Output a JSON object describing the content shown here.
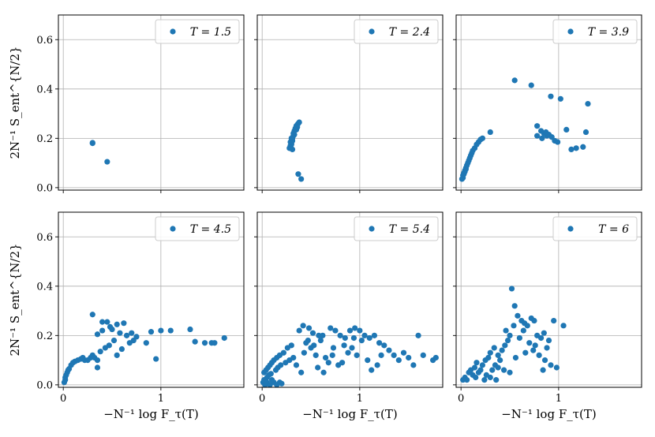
{
  "chart_data": {
    "type": "scatter",
    "rows": 2,
    "cols": 3,
    "sharex": true,
    "sharey": true,
    "xlim": [
      -0.05,
      1.85
    ],
    "ylim": [
      -0.01,
      0.7
    ],
    "xticks": [
      0,
      1
    ],
    "xtick_labels": [
      "0",
      "1"
    ],
    "yticks": [
      0.0,
      0.2,
      0.4,
      0.6
    ],
    "ytick_labels": [
      "0.0",
      "0.2",
      "0.4",
      "0.6"
    ],
    "xlabel": "−N⁻¹ log F_τ(T)",
    "ylabel": "2N⁻¹ S_ent^{N/2}",
    "grid": true,
    "legend_placement": "upper right",
    "marker_color": "#1f77b4",
    "panels": [
      {
        "legend": "T = 1.5",
        "points": [
          [
            0.3,
            0.18
          ],
          [
            0.3,
            0.182
          ],
          [
            0.45,
            0.105
          ]
        ]
      },
      {
        "legend": "T = 2.4",
        "points": [
          [
            0.28,
            0.16
          ],
          [
            0.29,
            0.17
          ],
          [
            0.3,
            0.175
          ],
          [
            0.3,
            0.18
          ],
          [
            0.31,
            0.19
          ],
          [
            0.31,
            0.2
          ],
          [
            0.32,
            0.21
          ],
          [
            0.32,
            0.22
          ],
          [
            0.33,
            0.23
          ],
          [
            0.34,
            0.24
          ],
          [
            0.35,
            0.25
          ],
          [
            0.36,
            0.255
          ],
          [
            0.37,
            0.26
          ],
          [
            0.38,
            0.265
          ],
          [
            0.29,
            0.185
          ],
          [
            0.3,
            0.2
          ],
          [
            0.31,
            0.155
          ],
          [
            0.33,
            0.215
          ],
          [
            0.35,
            0.235
          ],
          [
            0.36,
            0.245
          ],
          [
            0.37,
            0.055
          ],
          [
            0.4,
            0.035
          ]
        ]
      },
      {
        "legend": "T = 3.9",
        "points": [
          [
            0.01,
            0.035
          ],
          [
            0.02,
            0.04
          ],
          [
            0.02,
            0.05
          ],
          [
            0.03,
            0.055
          ],
          [
            0.03,
            0.06
          ],
          [
            0.04,
            0.065
          ],
          [
            0.04,
            0.07
          ],
          [
            0.05,
            0.075
          ],
          [
            0.05,
            0.08
          ],
          [
            0.06,
            0.09
          ],
          [
            0.07,
            0.1
          ],
          [
            0.08,
            0.11
          ],
          [
            0.09,
            0.12
          ],
          [
            0.1,
            0.13
          ],
          [
            0.11,
            0.14
          ],
          [
            0.12,
            0.15
          ],
          [
            0.14,
            0.16
          ],
          [
            0.16,
            0.175
          ],
          [
            0.18,
            0.185
          ],
          [
            0.2,
            0.195
          ],
          [
            0.22,
            0.2
          ],
          [
            0.3,
            0.225
          ],
          [
            0.55,
            0.435
          ],
          [
            0.72,
            0.415
          ],
          [
            0.92,
            0.37
          ],
          [
            1.02,
            0.36
          ],
          [
            1.3,
            0.34
          ],
          [
            0.78,
            0.25
          ],
          [
            0.82,
            0.23
          ],
          [
            0.85,
            0.22
          ],
          [
            0.88,
            0.21
          ],
          [
            0.9,
            0.215
          ],
          [
            0.93,
            0.205
          ],
          [
            0.96,
            0.19
          ],
          [
            0.99,
            0.185
          ],
          [
            0.78,
            0.21
          ],
          [
            0.83,
            0.2
          ],
          [
            0.87,
            0.225
          ],
          [
            1.08,
            0.235
          ],
          [
            1.18,
            0.16
          ],
          [
            1.13,
            0.155
          ],
          [
            1.25,
            0.165
          ],
          [
            1.28,
            0.225
          ]
        ]
      },
      {
        "legend": "T = 4.5",
        "points": [
          [
            0.01,
            0.01
          ],
          [
            0.02,
            0.02
          ],
          [
            0.02,
            0.03
          ],
          [
            0.03,
            0.04
          ],
          [
            0.04,
            0.05
          ],
          [
            0.05,
            0.06
          ],
          [
            0.06,
            0.065
          ],
          [
            0.08,
            0.08
          ],
          [
            0.1,
            0.09
          ],
          [
            0.12,
            0.095
          ],
          [
            0.15,
            0.1
          ],
          [
            0.18,
            0.105
          ],
          [
            0.2,
            0.11
          ],
          [
            0.22,
            0.1
          ],
          [
            0.25,
            0.1
          ],
          [
            0.28,
            0.11
          ],
          [
            0.3,
            0.12
          ],
          [
            0.32,
            0.11
          ],
          [
            0.35,
            0.1
          ],
          [
            0.3,
            0.285
          ],
          [
            0.4,
            0.255
          ],
          [
            0.45,
            0.255
          ],
          [
            0.48,
            0.235
          ],
          [
            0.55,
            0.245
          ],
          [
            0.62,
            0.25
          ],
          [
            0.35,
            0.205
          ],
          [
            0.4,
            0.22
          ],
          [
            0.5,
            0.225
          ],
          [
            0.58,
            0.21
          ],
          [
            0.65,
            0.2
          ],
          [
            0.7,
            0.21
          ],
          [
            0.75,
            0.195
          ],
          [
            0.68,
            0.17
          ],
          [
            0.72,
            0.18
          ],
          [
            0.52,
            0.18
          ],
          [
            0.47,
            0.16
          ],
          [
            0.43,
            0.15
          ],
          [
            0.6,
            0.145
          ],
          [
            0.38,
            0.135
          ],
          [
            0.55,
            0.12
          ],
          [
            0.35,
            0.07
          ],
          [
            0.9,
            0.215
          ],
          [
            1.0,
            0.22
          ],
          [
            1.1,
            0.22
          ],
          [
            1.3,
            0.225
          ],
          [
            1.35,
            0.175
          ],
          [
            1.45,
            0.17
          ],
          [
            1.52,
            0.17
          ],
          [
            1.55,
            0.17
          ],
          [
            1.65,
            0.19
          ],
          [
            0.95,
            0.105
          ],
          [
            0.85,
            0.17
          ]
        ]
      },
      {
        "legend": "T = 5.4",
        "points": [
          [
            0.01,
            0.01
          ],
          [
            0.02,
            0.02
          ],
          [
            0.03,
            0.0
          ],
          [
            0.05,
            0.01
          ],
          [
            0.08,
            0.0
          ],
          [
            0.1,
            0.02
          ],
          [
            0.12,
            0.01
          ],
          [
            0.15,
            0.0
          ],
          [
            0.18,
            0.01
          ],
          [
            0.2,
            0.005
          ],
          [
            0.02,
            0.05
          ],
          [
            0.04,
            0.06
          ],
          [
            0.06,
            0.07
          ],
          [
            0.08,
            0.08
          ],
          [
            0.1,
            0.09
          ],
          [
            0.12,
            0.1
          ],
          [
            0.15,
            0.11
          ],
          [
            0.18,
            0.12
          ],
          [
            0.22,
            0.13
          ],
          [
            0.26,
            0.15
          ],
          [
            0.3,
            0.16
          ],
          [
            0.05,
            0.03
          ],
          [
            0.07,
            0.04
          ],
          [
            0.09,
            0.045
          ],
          [
            0.14,
            0.06
          ],
          [
            0.16,
            0.07
          ],
          [
            0.19,
            0.08
          ],
          [
            0.24,
            0.09
          ],
          [
            0.28,
            0.1
          ],
          [
            0.32,
            0.11
          ],
          [
            0.38,
            0.22
          ],
          [
            0.42,
            0.24
          ],
          [
            0.48,
            0.23
          ],
          [
            0.52,
            0.21
          ],
          [
            0.58,
            0.2
          ],
          [
            0.62,
            0.2
          ],
          [
            0.7,
            0.23
          ],
          [
            0.75,
            0.22
          ],
          [
            0.8,
            0.2
          ],
          [
            0.85,
            0.19
          ],
          [
            0.9,
            0.22
          ],
          [
            0.95,
            0.23
          ],
          [
            1.0,
            0.22
          ],
          [
            1.05,
            0.2
          ],
          [
            1.1,
            0.19
          ],
          [
            1.15,
            0.2
          ],
          [
            1.2,
            0.17
          ],
          [
            1.25,
            0.16
          ],
          [
            1.3,
            0.14
          ],
          [
            1.35,
            0.12
          ],
          [
            1.4,
            0.1
          ],
          [
            1.45,
            0.13
          ],
          [
            1.5,
            0.11
          ],
          [
            1.55,
            0.08
          ],
          [
            1.6,
            0.2
          ],
          [
            1.65,
            0.12
          ],
          [
            1.75,
            0.1
          ],
          [
            1.78,
            0.11
          ],
          [
            0.45,
            0.17
          ],
          [
            0.5,
            0.15
          ],
          [
            0.55,
            0.12
          ],
          [
            0.6,
            0.18
          ],
          [
            0.65,
            0.11
          ],
          [
            0.68,
            0.09
          ],
          [
            0.72,
            0.12
          ],
          [
            0.78,
            0.08
          ],
          [
            0.82,
            0.09
          ],
          [
            0.88,
            0.13
          ],
          [
            0.92,
            0.15
          ],
          [
            0.97,
            0.12
          ],
          [
            1.02,
            0.18
          ],
          [
            1.08,
            0.1
          ],
          [
            1.12,
            0.06
          ],
          [
            1.18,
            0.08
          ],
          [
            1.22,
            0.12
          ],
          [
            0.4,
            0.05
          ],
          [
            0.35,
            0.08
          ],
          [
            0.43,
            0.13
          ],
          [
            0.47,
            0.18
          ],
          [
            0.53,
            0.16
          ],
          [
            0.57,
            0.07
          ],
          [
            0.63,
            0.05
          ],
          [
            0.73,
            0.15
          ],
          [
            0.84,
            0.16
          ],
          [
            0.94,
            0.19
          ]
        ]
      },
      {
        "legend": "T = 6",
        "points": [
          [
            0.02,
            0.02
          ],
          [
            0.04,
            0.03
          ],
          [
            0.06,
            0.02
          ],
          [
            0.08,
            0.05
          ],
          [
            0.1,
            0.06
          ],
          [
            0.12,
            0.04
          ],
          [
            0.15,
            0.03
          ],
          [
            0.18,
            0.05
          ],
          [
            0.2,
            0.06
          ],
          [
            0.22,
            0.08
          ],
          [
            0.25,
            0.1
          ],
          [
            0.28,
            0.11
          ],
          [
            0.3,
            0.13
          ],
          [
            0.32,
            0.06
          ],
          [
            0.35,
            0.08
          ],
          [
            0.38,
            0.07
          ],
          [
            0.4,
            0.1
          ],
          [
            0.42,
            0.14
          ],
          [
            0.45,
            0.16
          ],
          [
            0.48,
            0.18
          ],
          [
            0.5,
            0.2
          ],
          [
            0.52,
            0.39
          ],
          [
            0.55,
            0.32
          ],
          [
            0.58,
            0.28
          ],
          [
            0.62,
            0.26
          ],
          [
            0.65,
            0.25
          ],
          [
            0.68,
            0.24
          ],
          [
            0.72,
            0.27
          ],
          [
            0.75,
            0.26
          ],
          [
            0.78,
            0.2
          ],
          [
            0.82,
            0.19
          ],
          [
            0.85,
            0.21
          ],
          [
            0.88,
            0.15
          ],
          [
            0.9,
            0.18
          ],
          [
            0.95,
            0.26
          ],
          [
            1.05,
            0.24
          ],
          [
            0.6,
            0.19
          ],
          [
            0.7,
            0.17
          ],
          [
            0.74,
            0.14
          ],
          [
            0.8,
            0.12
          ],
          [
            0.86,
            0.1
          ],
          [
            0.92,
            0.08
          ],
          [
            0.66,
            0.13
          ],
          [
            0.56,
            0.11
          ],
          [
            0.5,
            0.05
          ],
          [
            0.44,
            0.06
          ],
          [
            0.36,
            0.02
          ],
          [
            0.3,
            0.03
          ],
          [
            0.26,
            0.04
          ],
          [
            0.24,
            0.02
          ],
          [
            0.34,
            0.15
          ],
          [
            0.38,
            0.12
          ],
          [
            0.46,
            0.22
          ],
          [
            0.54,
            0.24
          ],
          [
            0.64,
            0.22
          ],
          [
            0.76,
            0.16
          ],
          [
            0.84,
            0.06
          ],
          [
            0.98,
            0.07
          ],
          [
            0.14,
            0.07
          ],
          [
            0.16,
            0.09
          ]
        ]
      }
    ]
  }
}
